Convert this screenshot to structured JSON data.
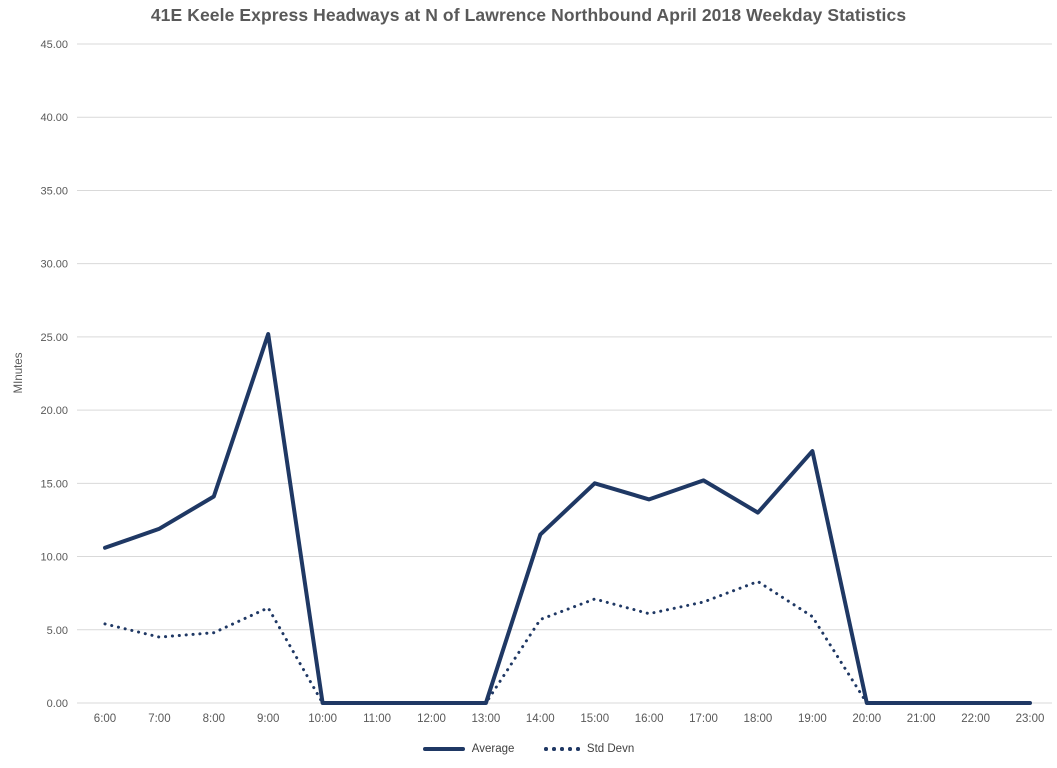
{
  "chart_data": {
    "type": "line",
    "title": "41E Keele Express Headways at N of Lawrence Northbound April 2018 Weekday Statistics",
    "xlabel": "",
    "ylabel": "MInutes",
    "categories": [
      "6:00",
      "7:00",
      "8:00",
      "9:00",
      "10:00",
      "11:00",
      "12:00",
      "13:00",
      "14:00",
      "15:00",
      "16:00",
      "17:00",
      "18:00",
      "19:00",
      "20:00",
      "21:00",
      "22:00",
      "23:00"
    ],
    "series": [
      {
        "name": "Average",
        "style": "solid",
        "values": [
          10.6,
          11.9,
          14.1,
          25.2,
          0,
          0,
          0,
          0,
          11.5,
          15.0,
          13.9,
          15.2,
          13.0,
          17.2,
          0,
          0,
          0,
          0
        ]
      },
      {
        "name": "Std Devn",
        "style": "dotted",
        "values": [
          5.4,
          4.5,
          4.8,
          6.5,
          0,
          0,
          0,
          0,
          5.7,
          7.1,
          6.1,
          6.9,
          8.3,
          5.9,
          0,
          0,
          0,
          0
        ]
      }
    ],
    "ylim": [
      0,
      45
    ],
    "ytick_step": 5,
    "ytick_decimals": 2,
    "grid": "horizontal",
    "legend_position": "bottom",
    "colors": {
      "line": "#1F3864",
      "grid": "#D9D9D9",
      "axis_text": "#595959",
      "title_text": "#595959"
    }
  }
}
